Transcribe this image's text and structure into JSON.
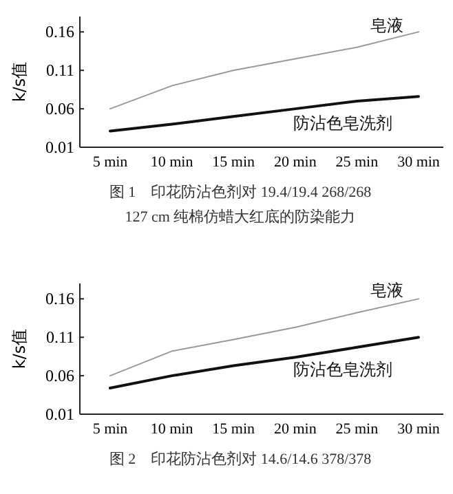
{
  "chart_data": [
    {
      "type": "line",
      "ylabel": "k/s值",
      "categories": [
        "5 min",
        "10 min",
        "15 min",
        "20 min",
        "25 min",
        "30 min"
      ],
      "ylim": [
        0.01,
        0.18
      ],
      "yticks": [
        0.01,
        0.06,
        0.11,
        0.16
      ],
      "series": [
        {
          "name": "皂液",
          "color": "#9a9a9a",
          "values": [
            0.06,
            0.09,
            0.11,
            0.125,
            0.14,
            0.16
          ]
        },
        {
          "name": "防沾色皂洗剂",
          "color": "#111111",
          "values": [
            0.031,
            0.04,
            0.05,
            0.06,
            0.07,
            0.076
          ]
        }
      ],
      "annotations": [
        "图 1　印花防沾色剂对 19.4/19.4 268/268",
        "127 cm 纯棉仿蜡大红底的防染能力"
      ]
    },
    {
      "type": "line",
      "ylabel": "k/s值",
      "categories": [
        "5 min",
        "10 min",
        "15 min",
        "20 min",
        "25 min",
        "30 min"
      ],
      "ylim": [
        0.01,
        0.18
      ],
      "yticks": [
        0.01,
        0.06,
        0.11,
        0.16
      ],
      "series": [
        {
          "name": "皂液",
          "color": "#9a9a9a",
          "values": [
            0.06,
            0.092,
            0.107,
            0.123,
            0.142,
            0.16
          ]
        },
        {
          "name": "防沾色皂洗剂",
          "color": "#111111",
          "values": [
            0.044,
            0.06,
            0.073,
            0.084,
            0.097,
            0.11
          ]
        }
      ],
      "annotations": [
        "图 2　印花防沾色剂对 14.6/14.6 378/378"
      ]
    }
  ]
}
